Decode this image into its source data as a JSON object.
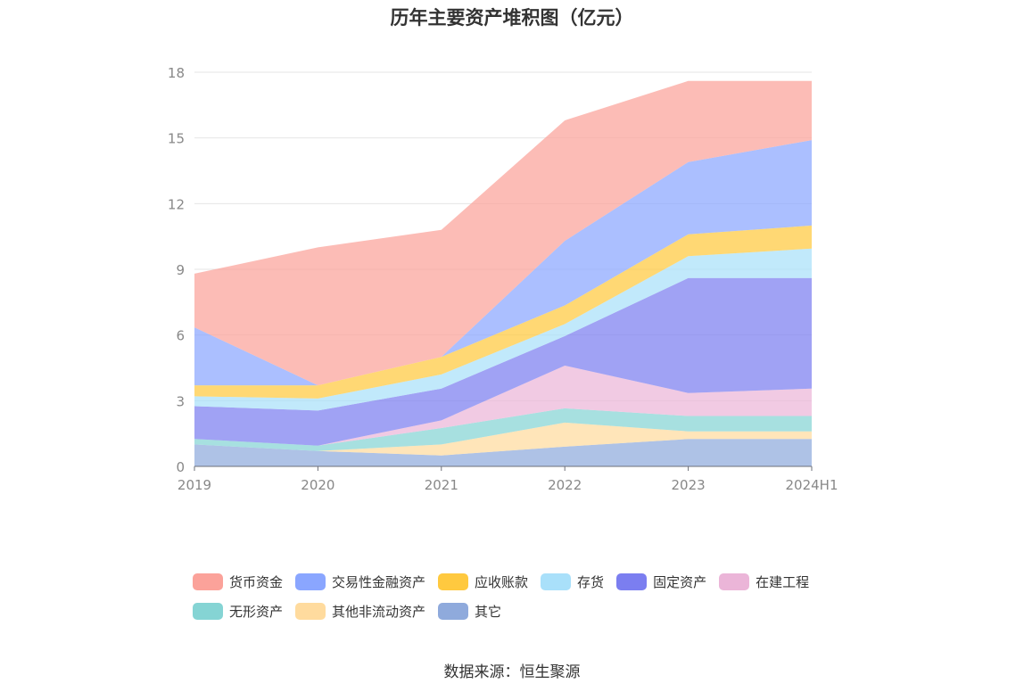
{
  "chart_data": {
    "type": "area",
    "title": "历年主要资产堆积图（亿元）",
    "x": [
      "2019",
      "2020",
      "2021",
      "2022",
      "2023",
      "2024H1"
    ],
    "ylim": [
      0,
      18
    ],
    "yticks": [
      0,
      3,
      6,
      9,
      12,
      15,
      18
    ],
    "grid": true,
    "legend_position": "bottom",
    "stacked": true,
    "series": [
      {
        "name": "其它",
        "color": "#8faadc",
        "values": [
          1.0,
          0.7,
          0.5,
          0.9,
          1.25,
          1.25
        ]
      },
      {
        "name": "其他非流动资产",
        "color": "#ffdb9e",
        "values": [
          0.0,
          0.0,
          0.5,
          1.1,
          0.35,
          0.35
        ]
      },
      {
        "name": "无形资产",
        "color": "#85d4d4",
        "values": [
          0.25,
          0.25,
          0.75,
          0.65,
          0.7,
          0.7
        ]
      },
      {
        "name": "在建工程",
        "color": "#ebb5d8",
        "values": [
          0.0,
          0.0,
          0.35,
          1.95,
          1.05,
          1.25
        ]
      },
      {
        "name": "固定资产",
        "color": "#7b7ef0",
        "values": [
          1.5,
          1.6,
          1.45,
          1.35,
          5.25,
          5.05
        ]
      },
      {
        "name": "存货",
        "color": "#a9e0fa",
        "values": [
          0.45,
          0.55,
          0.65,
          0.55,
          1.0,
          1.35
        ]
      },
      {
        "name": "应收账款",
        "color": "#ffc93f",
        "values": [
          0.5,
          0.6,
          0.8,
          0.85,
          1.0,
          1.05
        ]
      },
      {
        "name": "交易性金融资产",
        "color": "#8aa6ff",
        "values": [
          2.65,
          0.0,
          0.0,
          2.95,
          3.3,
          3.9
        ]
      },
      {
        "name": "货币资金",
        "color": "#fba29a",
        "values": [
          2.45,
          6.3,
          5.8,
          5.5,
          3.7,
          2.7
        ]
      }
    ]
  },
  "legend_order": [
    "货币资金",
    "交易性金融资产",
    "应收账款",
    "存货",
    "固定资产",
    "在建工程",
    "无形资产",
    "其他非流动资产",
    "其它"
  ],
  "source": "数据来源：恒生聚源"
}
